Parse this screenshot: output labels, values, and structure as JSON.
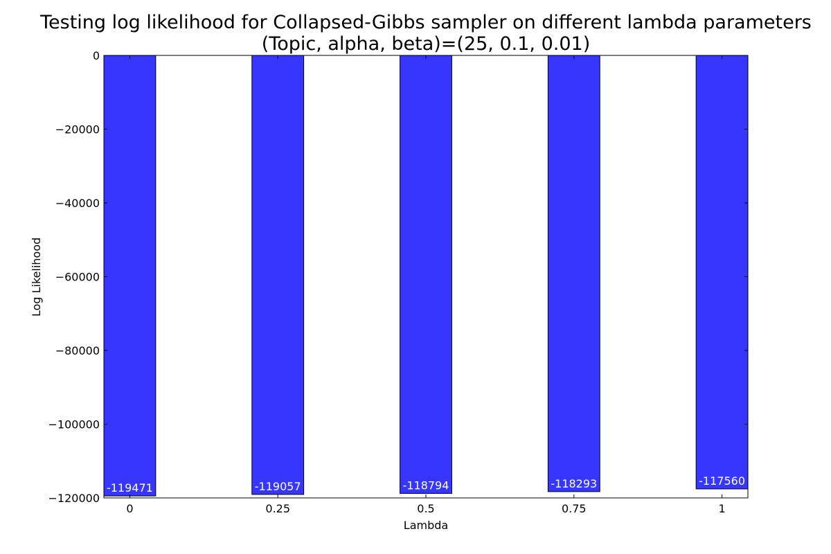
{
  "chart_data": {
    "type": "bar",
    "title_line1": "Testing log likelihood for Collapsed-Gibbs sampler on different lambda parameters",
    "title_line2": "(Topic, alpha, beta)=(25, 0.1, 0.01)",
    "xlabel": "Lambda",
    "ylabel": "Log Likelihood",
    "categories": [
      "0",
      "0.25",
      "0.5",
      "0.75",
      "1"
    ],
    "values": [
      -119471,
      -119057,
      -118794,
      -118293,
      -117560
    ],
    "data_labels": [
      "-119471",
      "-119057",
      "-118794",
      "-118293",
      "-117560"
    ],
    "ylim": [
      -120000,
      0
    ],
    "yticks": [
      0,
      -20000,
      -40000,
      -60000,
      -80000,
      -100000,
      -120000
    ],
    "ytick_labels": [
      "0",
      "−20000",
      "−40000",
      "−60000",
      "−80000",
      "−100000",
      "−120000"
    ],
    "bar_color": "#3636ff",
    "grid": false,
    "legend": "none"
  }
}
